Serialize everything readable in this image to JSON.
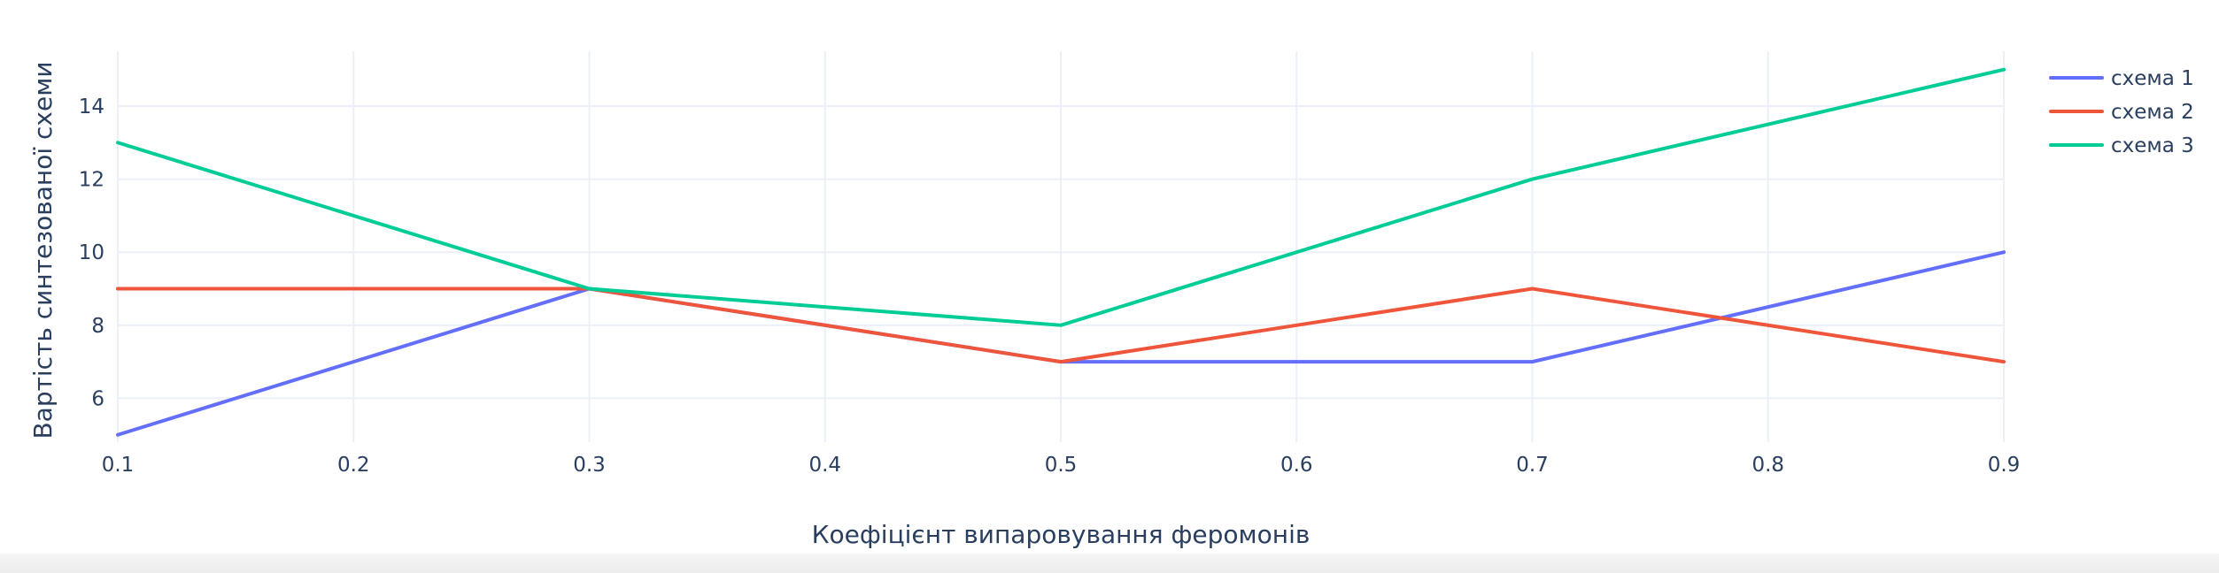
{
  "chart_data": {
    "type": "line",
    "title": "",
    "xlabel": "Коефіцієнт випаровування феромонів",
    "ylabel": "Вартість синтезованої схеми",
    "x": [
      0.1,
      0.3,
      0.5,
      0.7,
      0.9
    ],
    "xlim": [
      0.1,
      0.9
    ],
    "ylim": [
      4.8,
      15.5
    ],
    "x_ticks": [
      0.1,
      0.2,
      0.3,
      0.4,
      0.5,
      0.6,
      0.7,
      0.8,
      0.9
    ],
    "x_tick_labels": [
      "0.1",
      "0.2",
      "0.3",
      "0.4",
      "0.5",
      "0.6",
      "0.7",
      "0.8",
      "0.9"
    ],
    "y_ticks": [
      6,
      8,
      10,
      12,
      14
    ],
    "y_tick_labels": [
      "6",
      "8",
      "10",
      "12",
      "14"
    ],
    "grid": true,
    "legend_position": "top-right",
    "series": [
      {
        "name": "схема 1",
        "color": "#636efa",
        "values": [
          5,
          9,
          7,
          7,
          10
        ]
      },
      {
        "name": "схема 2",
        "color": "#ef553b",
        "values": [
          9,
          9,
          7,
          9,
          7
        ]
      },
      {
        "name": "схема 3",
        "color": "#00cc96",
        "values": [
          13,
          9,
          8,
          12,
          15
        ]
      }
    ]
  }
}
